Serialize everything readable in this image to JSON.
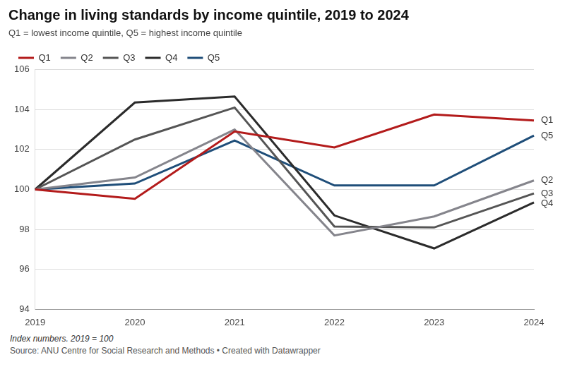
{
  "chart_data": {
    "type": "line",
    "title": "Change in living standards by income quintile, 2019 to 2024",
    "subtitle": "Q1 = lowest income quintile, Q5 = highest income quintile",
    "caption": "Index numbers. 2019 = 100",
    "source": "Source: ANU Centre for Social Research and Methods • Created with Datawrapper",
    "categories": [
      "2019",
      "2020",
      "2021",
      "2022",
      "2023",
      "2024"
    ],
    "series": [
      {
        "name": "Q1",
        "color": "#b31b1b",
        "values": [
          100,
          99.53,
          102.9,
          102.1,
          103.75,
          103.45
        ]
      },
      {
        "name": "Q2",
        "color": "#85858c",
        "values": [
          100,
          100.6,
          103.0,
          97.7,
          98.65,
          100.45
        ]
      },
      {
        "name": "Q3",
        "color": "#555555",
        "values": [
          100,
          102.5,
          104.1,
          98.15,
          98.1,
          99.8
        ]
      },
      {
        "name": "Q4",
        "color": "#2b2b2b",
        "values": [
          100,
          104.35,
          104.65,
          98.7,
          97.05,
          99.35
        ]
      },
      {
        "name": "Q5",
        "color": "#1f4e79",
        "values": [
          100,
          100.3,
          102.45,
          100.2,
          100.2,
          102.7
        ]
      }
    ],
    "ylim": [
      94,
      106
    ],
    "yticks": [
      94,
      96,
      98,
      100,
      102,
      104,
      106
    ],
    "grid": true,
    "legend": "top-left"
  }
}
